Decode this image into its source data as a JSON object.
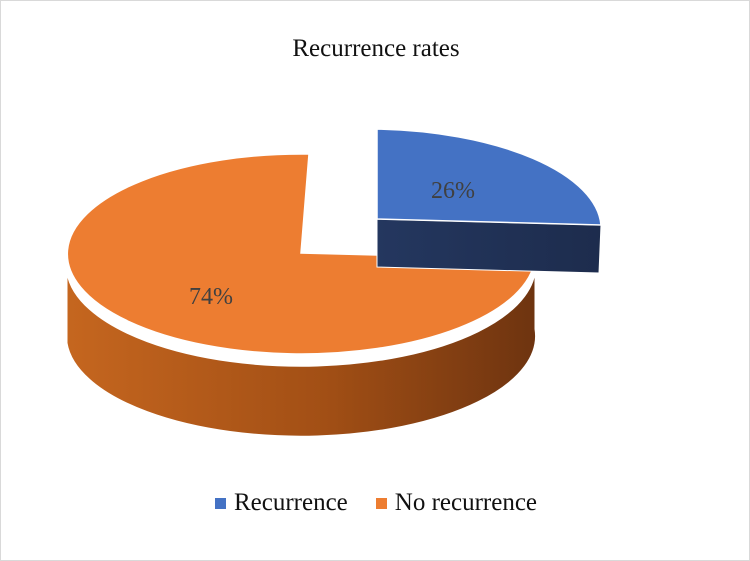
{
  "chart_data": {
    "type": "pie",
    "title": "Recurrence rates",
    "categories": [
      "Recurrence",
      "No recurrence"
    ],
    "values": [
      26,
      74
    ],
    "data_labels": [
      "26%",
      "74%"
    ],
    "colors": [
      "#4472C4",
      "#ED7D31"
    ],
    "exploded": "Recurrence",
    "style": "3d",
    "legend_position": "bottom"
  }
}
